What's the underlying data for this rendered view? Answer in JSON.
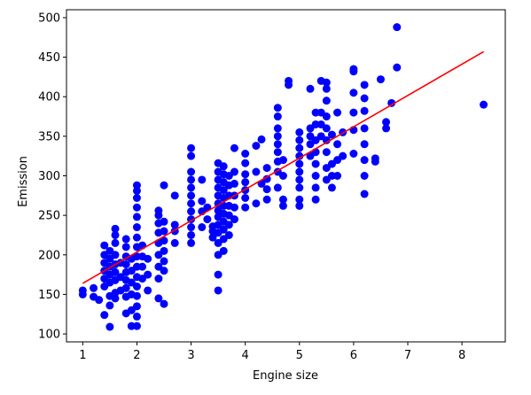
{
  "chart_data": {
    "type": "scatter",
    "title": "",
    "xlabel": "Engine size",
    "ylabel": "Emission",
    "xlim": [
      0.7,
      8.8
    ],
    "ylim": [
      90,
      510
    ],
    "xticks": [
      1,
      2,
      3,
      4,
      5,
      6,
      7,
      8
    ],
    "yticks": [
      100,
      150,
      200,
      250,
      300,
      350,
      400,
      450,
      500
    ],
    "grid": false,
    "legend": "none",
    "series": [
      {
        "kind": "scatter",
        "color": "#0000ff",
        "points": [
          [
            1.0,
            150
          ],
          [
            1.0,
            155
          ],
          [
            1.2,
            147
          ],
          [
            1.2,
            158
          ],
          [
            1.3,
            143
          ],
          [
            1.4,
            124
          ],
          [
            1.4,
            160
          ],
          [
            1.4,
            170
          ],
          [
            1.4,
            180
          ],
          [
            1.4,
            190
          ],
          [
            1.4,
            200
          ],
          [
            1.4,
            212
          ],
          [
            1.5,
            109
          ],
          [
            1.5,
            136
          ],
          [
            1.5,
            148
          ],
          [
            1.5,
            165
          ],
          [
            1.5,
            175
          ],
          [
            1.5,
            185
          ],
          [
            1.5,
            195
          ],
          [
            1.5,
            205
          ],
          [
            1.6,
            145
          ],
          [
            1.6,
            152
          ],
          [
            1.6,
            168
          ],
          [
            1.6,
            178
          ],
          [
            1.6,
            188
          ],
          [
            1.6,
            200
          ],
          [
            1.6,
            215
          ],
          [
            1.6,
            225
          ],
          [
            1.6,
            233
          ],
          [
            1.7,
            155
          ],
          [
            1.7,
            172
          ],
          [
            1.7,
            190
          ],
          [
            1.8,
            126
          ],
          [
            1.8,
            147
          ],
          [
            1.8,
            158
          ],
          [
            1.8,
            168
          ],
          [
            1.8,
            178
          ],
          [
            1.8,
            188
          ],
          [
            1.8,
            198
          ],
          [
            1.8,
            210
          ],
          [
            1.8,
            220
          ],
          [
            1.9,
            110
          ],
          [
            1.9,
            130
          ],
          [
            1.9,
            150
          ],
          [
            1.9,
            165
          ],
          [
            1.9,
            180
          ],
          [
            1.9,
            195
          ],
          [
            2.0,
            110
          ],
          [
            2.0,
            122
          ],
          [
            2.0,
            135
          ],
          [
            2.0,
            148
          ],
          [
            2.0,
            160
          ],
          [
            2.0,
            172
          ],
          [
            2.0,
            185
          ],
          [
            2.0,
            198
          ],
          [
            2.0,
            210
          ],
          [
            2.0,
            222
          ],
          [
            2.0,
            235
          ],
          [
            2.0,
            248
          ],
          [
            2.0,
            260
          ],
          [
            2.0,
            272
          ],
          [
            2.0,
            281
          ],
          [
            2.0,
            288
          ],
          [
            2.1,
            170
          ],
          [
            2.1,
            185
          ],
          [
            2.1,
            198
          ],
          [
            2.1,
            212
          ],
          [
            2.2,
            155
          ],
          [
            2.2,
            175
          ],
          [
            2.2,
            195
          ],
          [
            2.4,
            145
          ],
          [
            2.4,
            170
          ],
          [
            2.4,
            185
          ],
          [
            2.4,
            200
          ],
          [
            2.4,
            215
          ],
          [
            2.4,
            228
          ],
          [
            2.4,
            240
          ],
          [
            2.4,
            250
          ],
          [
            2.4,
            256
          ],
          [
            2.5,
            138
          ],
          [
            2.5,
            180
          ],
          [
            2.5,
            192
          ],
          [
            2.5,
            205
          ],
          [
            2.5,
            218
          ],
          [
            2.5,
            230
          ],
          [
            2.5,
            242
          ],
          [
            2.5,
            288
          ],
          [
            2.7,
            215
          ],
          [
            2.7,
            230
          ],
          [
            2.7,
            238
          ],
          [
            2.7,
            275
          ],
          [
            3.0,
            215
          ],
          [
            3.0,
            225
          ],
          [
            3.0,
            235
          ],
          [
            3.0,
            245
          ],
          [
            3.0,
            255
          ],
          [
            3.0,
            265
          ],
          [
            3.0,
            275
          ],
          [
            3.0,
            285
          ],
          [
            3.0,
            295
          ],
          [
            3.0,
            305
          ],
          [
            3.0,
            325
          ],
          [
            3.0,
            335
          ],
          [
            3.2,
            235
          ],
          [
            3.2,
            255
          ],
          [
            3.2,
            268
          ],
          [
            3.2,
            295
          ],
          [
            3.3,
            245
          ],
          [
            3.3,
            260
          ],
          [
            3.4,
            222
          ],
          [
            3.4,
            230
          ],
          [
            3.4,
            236
          ],
          [
            3.5,
            155
          ],
          [
            3.5,
            175
          ],
          [
            3.5,
            200
          ],
          [
            3.5,
            215
          ],
          [
            3.5,
            228
          ],
          [
            3.5,
            238
          ],
          [
            3.5,
            248
          ],
          [
            3.5,
            256
          ],
          [
            3.5,
            265
          ],
          [
            3.5,
            275
          ],
          [
            3.5,
            285
          ],
          [
            3.5,
            295
          ],
          [
            3.5,
            305
          ],
          [
            3.5,
            316
          ],
          [
            3.6,
            205
          ],
          [
            3.6,
            220
          ],
          [
            3.6,
            232
          ],
          [
            3.6,
            242
          ],
          [
            3.6,
            252
          ],
          [
            3.6,
            262
          ],
          [
            3.6,
            272
          ],
          [
            3.6,
            282
          ],
          [
            3.6,
            292
          ],
          [
            3.6,
            302
          ],
          [
            3.6,
            312
          ],
          [
            3.7,
            225
          ],
          [
            3.7,
            238
          ],
          [
            3.7,
            250
          ],
          [
            3.7,
            262
          ],
          [
            3.7,
            275
          ],
          [
            3.7,
            288
          ],
          [
            3.7,
            300
          ],
          [
            3.8,
            245
          ],
          [
            3.8,
            260
          ],
          [
            3.8,
            275
          ],
          [
            3.8,
            290
          ],
          [
            3.8,
            305
          ],
          [
            3.8,
            335
          ],
          [
            4.0,
            260
          ],
          [
            4.0,
            272
          ],
          [
            4.0,
            282
          ],
          [
            4.0,
            292
          ],
          [
            4.0,
            302
          ],
          [
            4.0,
            316
          ],
          [
            4.0,
            328
          ],
          [
            4.2,
            265
          ],
          [
            4.2,
            305
          ],
          [
            4.2,
            338
          ],
          [
            4.3,
            290
          ],
          [
            4.3,
            346
          ],
          [
            4.4,
            270
          ],
          [
            4.4,
            283
          ],
          [
            4.4,
            296
          ],
          [
            4.4,
            310
          ],
          [
            4.6,
            285
          ],
          [
            4.6,
            305
          ],
          [
            4.6,
            318
          ],
          [
            4.6,
            330
          ],
          [
            4.6,
            340
          ],
          [
            4.6,
            350
          ],
          [
            4.6,
            360
          ],
          [
            4.6,
            375
          ],
          [
            4.6,
            386
          ],
          [
            4.7,
            262
          ],
          [
            4.7,
            270
          ],
          [
            4.7,
            300
          ],
          [
            4.7,
            320
          ],
          [
            4.8,
            415
          ],
          [
            4.8,
            420
          ],
          [
            5.0,
            262
          ],
          [
            5.0,
            270
          ],
          [
            5.0,
            285
          ],
          [
            5.0,
            295
          ],
          [
            5.0,
            305
          ],
          [
            5.0,
            315
          ],
          [
            5.0,
            325
          ],
          [
            5.0,
            335
          ],
          [
            5.0,
            345
          ],
          [
            5.0,
            355
          ],
          [
            5.2,
            325
          ],
          [
            5.2,
            340
          ],
          [
            5.2,
            350
          ],
          [
            5.2,
            360
          ],
          [
            5.2,
            410
          ],
          [
            5.3,
            270
          ],
          [
            5.3,
            285
          ],
          [
            5.3,
            300
          ],
          [
            5.3,
            315
          ],
          [
            5.3,
            330
          ],
          [
            5.3,
            345
          ],
          [
            5.3,
            365
          ],
          [
            5.3,
            380
          ],
          [
            5.4,
            350
          ],
          [
            5.4,
            365
          ],
          [
            5.4,
            380
          ],
          [
            5.4,
            420
          ],
          [
            5.5,
            295
          ],
          [
            5.5,
            310
          ],
          [
            5.5,
            330
          ],
          [
            5.5,
            345
          ],
          [
            5.5,
            360
          ],
          [
            5.5,
            375
          ],
          [
            5.5,
            395
          ],
          [
            5.5,
            410
          ],
          [
            5.5,
            418
          ],
          [
            5.6,
            285
          ],
          [
            5.6,
            300
          ],
          [
            5.6,
            315
          ],
          [
            5.6,
            352
          ],
          [
            5.7,
            300
          ],
          [
            5.7,
            320
          ],
          [
            5.7,
            340
          ],
          [
            5.7,
            380
          ],
          [
            5.8,
            325
          ],
          [
            5.8,
            355
          ],
          [
            6.0,
            328
          ],
          [
            6.0,
            358
          ],
          [
            6.0,
            380
          ],
          [
            6.0,
            405
          ],
          [
            6.0,
            432
          ],
          [
            6.0,
            435
          ],
          [
            6.2,
            277
          ],
          [
            6.2,
            300
          ],
          [
            6.2,
            320
          ],
          [
            6.2,
            340
          ],
          [
            6.2,
            360
          ],
          [
            6.2,
            382
          ],
          [
            6.2,
            398
          ],
          [
            6.2,
            415
          ],
          [
            6.4,
            318
          ],
          [
            6.4,
            322
          ],
          [
            6.5,
            422
          ],
          [
            6.6,
            360
          ],
          [
            6.6,
            368
          ],
          [
            6.7,
            392
          ],
          [
            6.8,
            437
          ],
          [
            6.8,
            488
          ],
          [
            8.4,
            390
          ]
        ]
      },
      {
        "kind": "fit-line",
        "color": "#ff0000",
        "points": [
          [
            1.0,
            164
          ],
          [
            8.4,
            457
          ]
        ]
      }
    ]
  }
}
